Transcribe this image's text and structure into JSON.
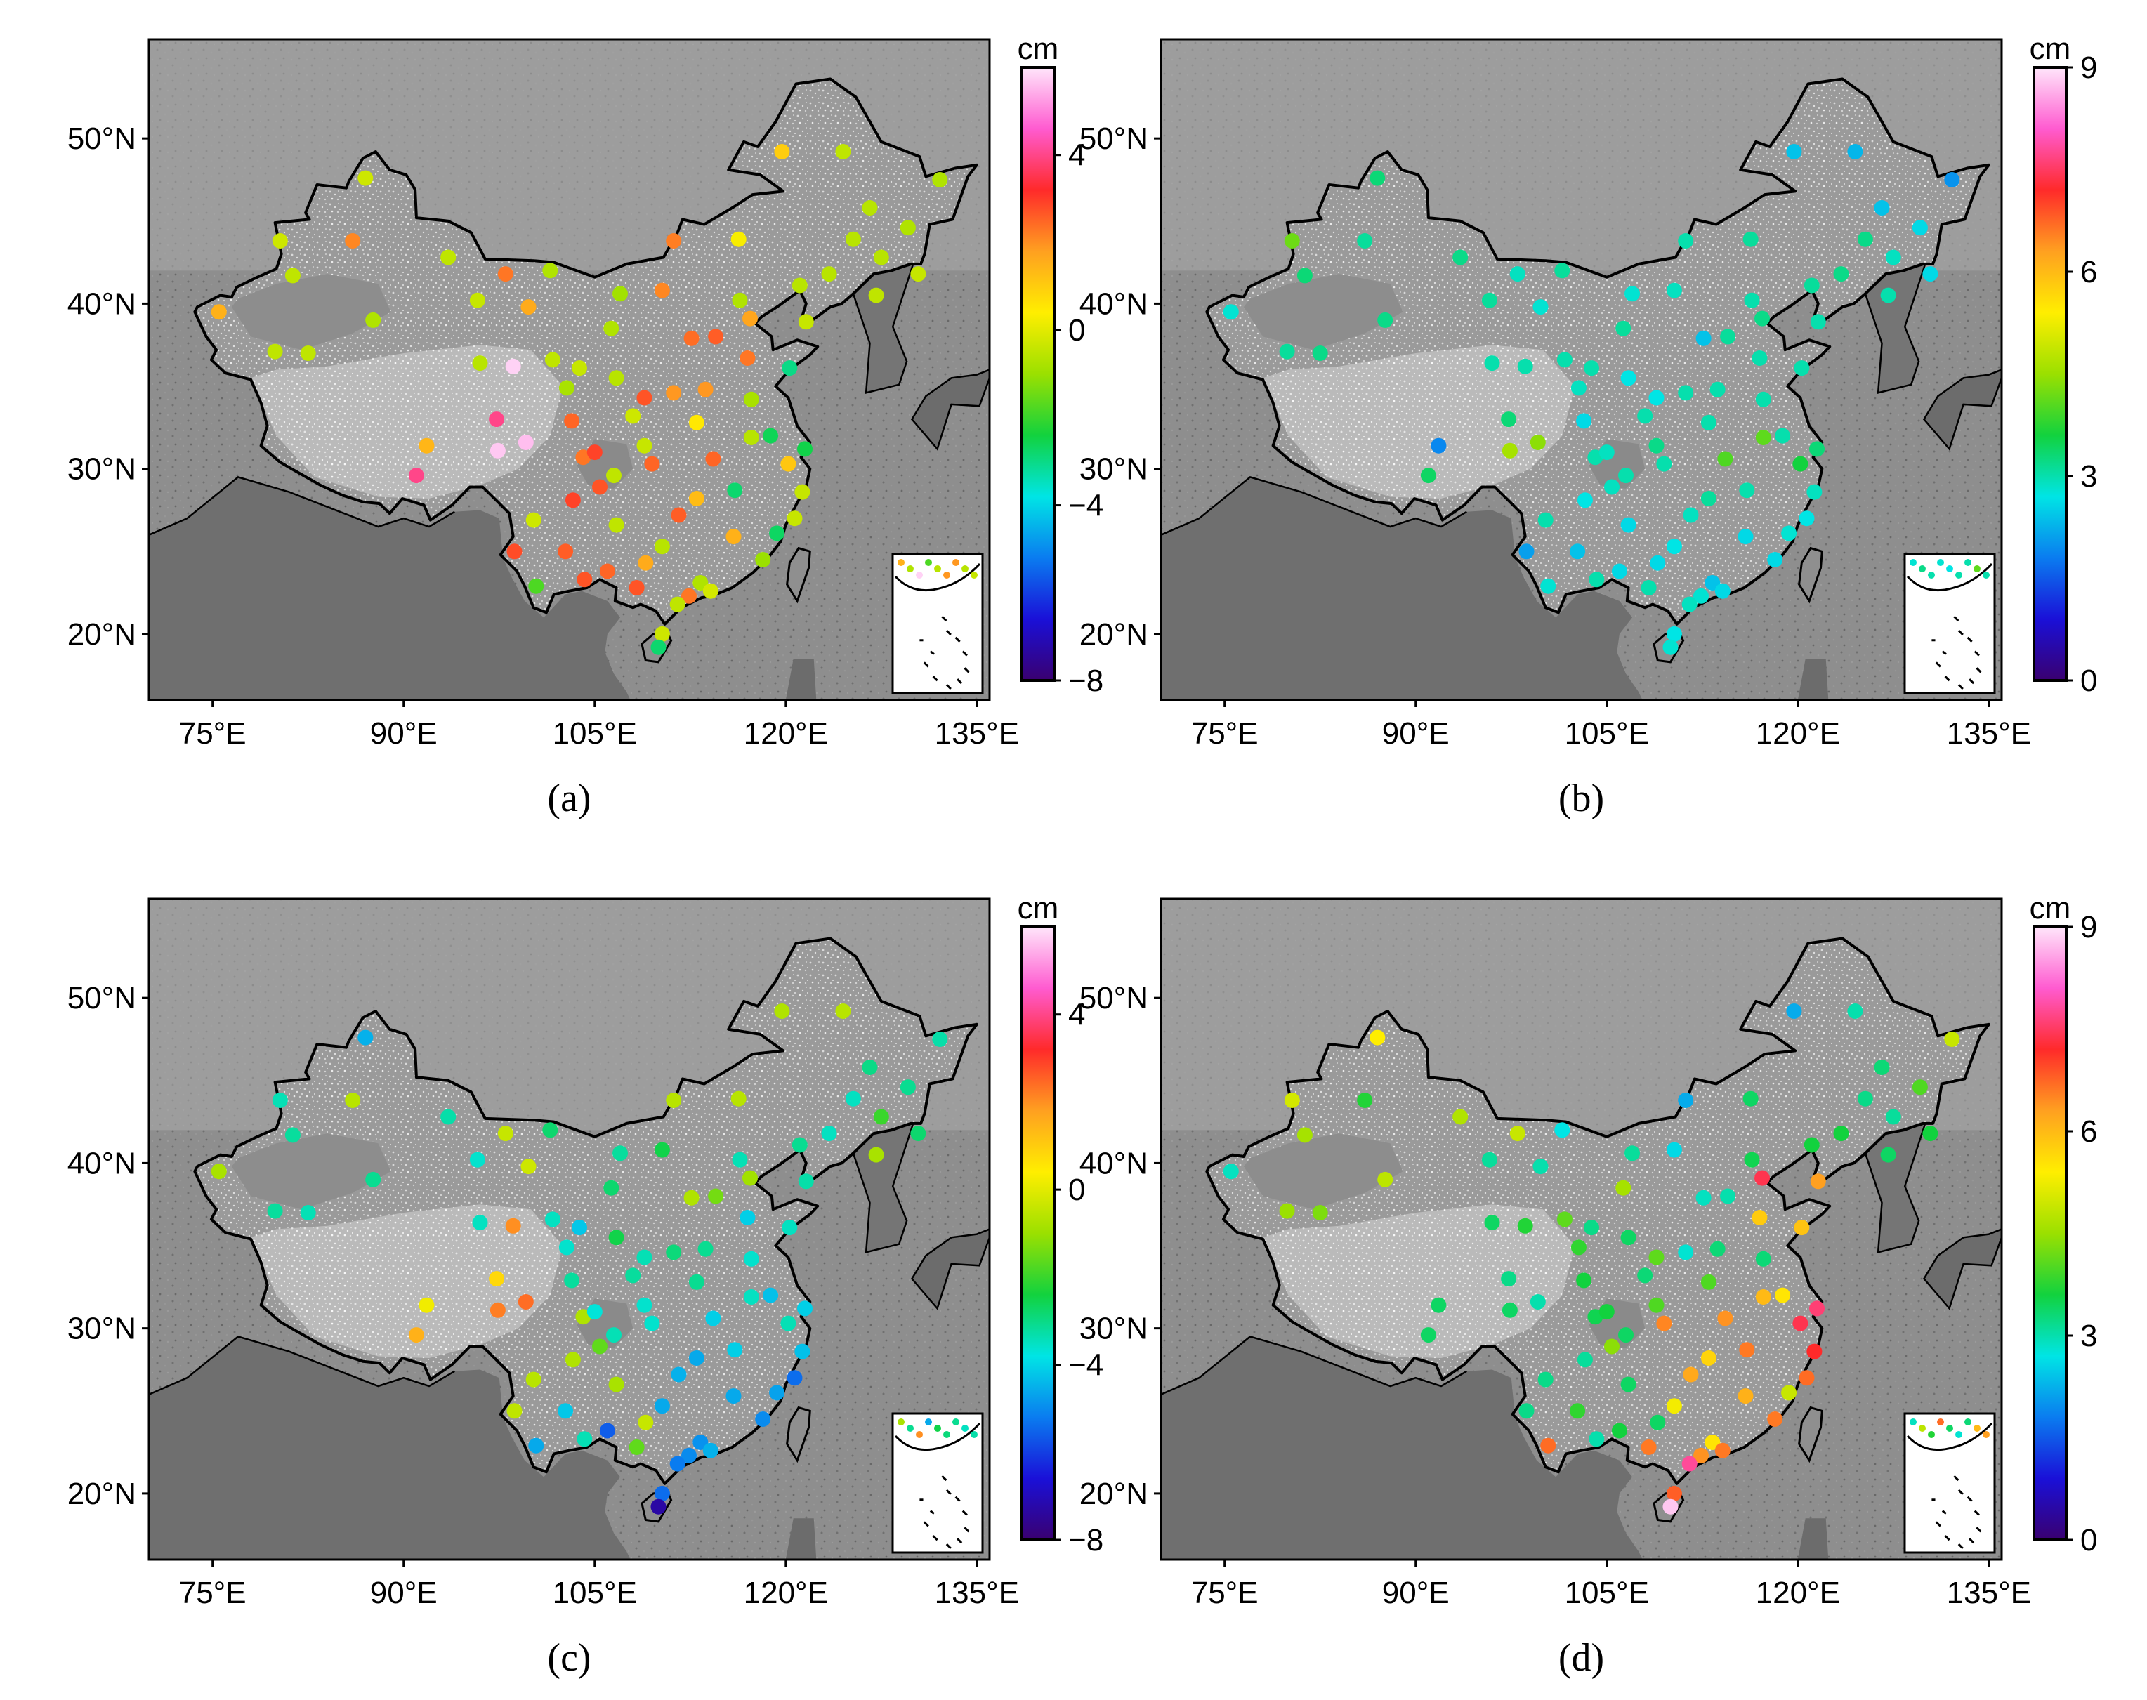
{
  "figure": {
    "lat_ticks": [
      "50°N",
      "40°N",
      "30°N",
      "20°N"
    ],
    "lon_ticks": [
      "75°E",
      "90°E",
      "105°E",
      "120°E",
      "135°E"
    ],
    "extent": {
      "lon": [
        70,
        136
      ],
      "lat": [
        16,
        56
      ]
    },
    "panels": [
      {
        "caption": "(a)",
        "colorbar": {
          "unit": "cm",
          "range": [
            -8,
            6
          ],
          "ticks": [
            "4",
            "0",
            "−4",
            "−8"
          ],
          "tick_values": [
            4,
            0,
            -4,
            -8
          ]
        }
      },
      {
        "caption": "(b)",
        "colorbar": {
          "unit": "cm",
          "range": [
            0,
            9
          ],
          "ticks": [
            "9",
            "6",
            "3",
            "0"
          ],
          "tick_values": [
            9,
            6,
            3,
            0
          ]
        }
      },
      {
        "caption": "(c)",
        "colorbar": {
          "unit": "cm",
          "range": [
            -8,
            6
          ],
          "ticks": [
            "4",
            "0",
            "−4",
            "−8"
          ],
          "tick_values": [
            4,
            0,
            -4,
            -8
          ]
        }
      },
      {
        "caption": "(d)",
        "colorbar": {
          "unit": "cm",
          "range": [
            0,
            9
          ],
          "ticks": [
            "9",
            "6",
            "3",
            "0"
          ],
          "tick_values": [
            9,
            6,
            3,
            0
          ]
        }
      }
    ],
    "colormap": [
      "#3a0070",
      "#1a10d8",
      "#0a7cf0",
      "#00e5e5",
      "#12d23e",
      "#9be000",
      "#ffee00",
      "#ffa020",
      "#ff2a2a",
      "#ff5bd0",
      "#ffe6fb"
    ]
  },
  "stations": {
    "coords": [
      [
        75.5,
        39.5
      ],
      [
        79.9,
        37.1
      ],
      [
        82.5,
        37.0
      ],
      [
        80.3,
        43.8
      ],
      [
        81.3,
        41.7
      ],
      [
        86.0,
        43.8
      ],
      [
        87.0,
        47.6
      ],
      [
        87.6,
        39.0
      ],
      [
        93.5,
        42.8
      ],
      [
        95.8,
        40.2
      ],
      [
        96.0,
        36.4
      ],
      [
        98.0,
        41.8
      ],
      [
        99.8,
        39.8
      ],
      [
        101.5,
        42.0
      ],
      [
        98.6,
        36.2
      ],
      [
        97.3,
        33.0
      ],
      [
        91.0,
        29.6
      ],
      [
        91.8,
        31.4
      ],
      [
        97.4,
        31.1
      ],
      [
        99.6,
        31.6
      ],
      [
        98.7,
        25.0
      ],
      [
        100.4,
        22.9
      ],
      [
        102.7,
        25.0
      ],
      [
        103.8,
        36.1
      ],
      [
        102.8,
        34.9
      ],
      [
        104.1,
        30.7
      ],
      [
        103.2,
        32.9
      ],
      [
        106.3,
        38.5
      ],
      [
        106.7,
        35.5
      ],
      [
        106.5,
        29.6
      ],
      [
        106.7,
        26.6
      ],
      [
        108.9,
        34.3
      ],
      [
        107.0,
        40.6
      ],
      [
        110.3,
        40.8
      ],
      [
        112.6,
        37.9
      ],
      [
        111.2,
        34.6
      ],
      [
        109.5,
        30.3
      ],
      [
        110.3,
        25.3
      ],
      [
        108.3,
        22.8
      ],
      [
        111.2,
        43.8
      ],
      [
        116.3,
        43.9
      ],
      [
        114.5,
        38.0
      ],
      [
        113.7,
        34.8
      ],
      [
        114.3,
        30.6
      ],
      [
        113.0,
        28.2
      ],
      [
        113.3,
        23.1
      ],
      [
        110.3,
        20.0
      ],
      [
        110.0,
        19.2
      ],
      [
        117.0,
        36.7
      ],
      [
        117.3,
        31.9
      ],
      [
        116.0,
        28.7
      ],
      [
        119.3,
        26.1
      ],
      [
        118.8,
        32.0
      ],
      [
        120.2,
        30.3
      ],
      [
        121.5,
        31.2
      ],
      [
        120.3,
        36.1
      ],
      [
        121.6,
        38.9
      ],
      [
        123.4,
        41.8
      ],
      [
        125.3,
        43.9
      ],
      [
        126.6,
        45.8
      ],
      [
        124.5,
        49.2
      ],
      [
        119.7,
        49.2
      ],
      [
        129.6,
        44.6
      ],
      [
        132.1,
        47.5
      ],
      [
        130.4,
        41.8
      ],
      [
        127.5,
        42.8
      ],
      [
        127.1,
        40.5
      ],
      [
        121.1,
        41.1
      ],
      [
        117.2,
        39.1
      ],
      [
        120.7,
        27.0
      ],
      [
        117.3,
        34.2
      ],
      [
        113.0,
        32.8
      ],
      [
        108.0,
        33.2
      ],
      [
        105.0,
        31.0
      ],
      [
        101.7,
        36.6
      ],
      [
        100.2,
        26.9
      ],
      [
        104.2,
        23.3
      ],
      [
        106.0,
        23.8
      ],
      [
        112.4,
        22.3
      ],
      [
        114.1,
        22.6
      ],
      [
        111.6,
        27.2
      ],
      [
        105.4,
        28.9
      ],
      [
        115.9,
        25.9
      ],
      [
        118.2,
        24.5
      ],
      [
        109.0,
        24.3
      ],
      [
        108.9,
        31.4
      ],
      [
        103.3,
        28.1
      ],
      [
        111.5,
        21.8
      ],
      [
        121.3,
        28.6
      ],
      [
        116.4,
        40.2
      ]
    ],
    "values_a": [
      1.5,
      -0.5,
      -0.5,
      -0.3,
      -0.5,
      2.1,
      -0.3,
      -0.7,
      -0.5,
      -0.4,
      -0.6,
      2.3,
      1.6,
      -0.7,
      5.8,
      4.0,
      4.0,
      1.4,
      5.7,
      5.6,
      2.8,
      -1.8,
      2.6,
      -0.4,
      -0.8,
      2.3,
      2.5,
      -0.7,
      -0.6,
      -0.5,
      -0.5,
      2.7,
      -0.9,
      2.1,
      2.4,
      1.9,
      2.5,
      -0.6,
      2.7,
      2.2,
      0.3,
      2.6,
      1.9,
      2.5,
      1.3,
      -0.7,
      -0.3,
      -2.8,
      2.3,
      -0.6,
      -2.8,
      -2.7,
      -2.6,
      1.1,
      -2.5,
      -3.0,
      -0.4,
      -0.6,
      -0.6,
      -0.6,
      -0.5,
      1.0,
      -0.7,
      -0.7,
      -0.4,
      -0.6,
      -0.5,
      -0.6,
      1.7,
      -0.4,
      -0.8,
      0.5,
      -0.3,
      2.9,
      -0.5,
      -0.3,
      2.7,
      2.5,
      2.3,
      -0.2,
      2.6,
      2.7,
      1.5,
      -1.0,
      1.6,
      -0.4,
      2.9,
      -0.5,
      -0.4,
      -0.7
    ],
    "values_b": [
      2.8,
      3.1,
      3.2,
      4.2,
      3.3,
      3.1,
      3.3,
      3.2,
      3.2,
      3.1,
      3.0,
      2.9,
      2.8,
      3.1,
      3.0,
      3.3,
      3.4,
      1.9,
      4.6,
      4.4,
      2.1,
      2.8,
      2.4,
      3.0,
      2.9,
      3.0,
      2.6,
      3.1,
      2.7,
      3.0,
      2.6,
      2.7,
      2.8,
      2.9,
      2.4,
      3.0,
      3.0,
      2.7,
      3.0,
      3.0,
      3.1,
      3.1,
      3.0,
      4.0,
      3.1,
      2.4,
      2.7,
      2.8,
      3.0,
      4.1,
      3.0,
      2.8,
      3.0,
      3.6,
      3.3,
      3.0,
      3.0,
      3.2,
      3.2,
      2.4,
      2.3,
      2.4,
      2.6,
      2.0,
      2.6,
      2.9,
      3.0,
      3.1,
      3.2,
      2.7,
      3.0,
      3.0,
      3.0,
      2.9,
      3.0,
      3.0,
      3.0,
      2.6,
      2.8,
      2.6,
      2.9,
      2.9,
      2.6,
      2.6,
      2.6,
      3.2,
      2.7,
      2.9,
      2.9,
      3.0
    ],
    "values_c": [
      -0.8,
      -3.2,
      -3.4,
      -3.4,
      -3.2,
      -0.6,
      -4.5,
      -3.1,
      -3.3,
      -3.6,
      -3.5,
      -0.4,
      -0.3,
      -2.8,
      2.0,
      0.8,
      1.5,
      0.2,
      2.2,
      2.4,
      -0.5,
      -4.6,
      -4.2,
      -4.2,
      -3.6,
      -0.7,
      -3.2,
      -2.8,
      -2.5,
      -3.4,
      -0.8,
      -3.4,
      -3.2,
      -2.5,
      -0.7,
      -2.9,
      -3.6,
      -4.6,
      -1.6,
      -0.6,
      -0.6,
      -1.4,
      -3.1,
      -4.1,
      -4.6,
      -4.9,
      -5.4,
      -7.3,
      -4.1,
      -3.5,
      -4.1,
      -4.7,
      -4.3,
      -3.4,
      -4.1,
      -3.5,
      -3.3,
      -3.5,
      -3.5,
      -3.0,
      -0.6,
      -0.7,
      -3.1,
      -3.3,
      -2.8,
      -2.0,
      -0.8,
      -3.1,
      -0.9,
      -5.4,
      -3.6,
      -3.1,
      -3.2,
      -3.7,
      -3.5,
      -0.6,
      -3.4,
      -5.6,
      -5.0,
      -4.5,
      -4.5,
      -1.6,
      -4.6,
      -5.0,
      -0.4,
      -3.6,
      -0.7,
      -5.2,
      -4.3,
      -3.4
    ],
    "values_d": [
      2.9,
      4.5,
      4.3,
      5.0,
      4.6,
      3.7,
      5.4,
      4.8,
      4.7,
      3.1,
      3.4,
      4.9,
      3.0,
      2.7,
      3.7,
      3.2,
      3.4,
      3.4,
      3.4,
      3.0,
      3.2,
      6.7,
      3.8,
      3.2,
      3.8,
      3.5,
      3.6,
      4.6,
      3.4,
      3.4,
      3.4,
      4.1,
      3.1,
      2.6,
      2.9,
      2.8,
      6.5,
      5.3,
      6.6,
      2.2,
      3.4,
      3.0,
      3.3,
      6.4,
      5.7,
      5.5,
      6.8,
      8.8,
      5.8,
      6.0,
      6.6,
      4.9,
      5.5,
      7.4,
      7.6,
      5.9,
      6.3,
      3.6,
      3.2,
      3.3,
      3.0,
      2.2,
      4.0,
      4.9,
      3.6,
      3.1,
      3.4,
      3.6,
      7.4,
      6.7,
      3.3,
      4.0,
      3.3,
      3.6,
      4.1,
      3.2,
      3.0,
      3.6,
      6.4,
      6.6,
      6.2,
      4.4,
      6.1,
      6.6,
      3.4,
      4.0,
      3.1,
      7.8,
      7.2,
      3.5
    ]
  }
}
